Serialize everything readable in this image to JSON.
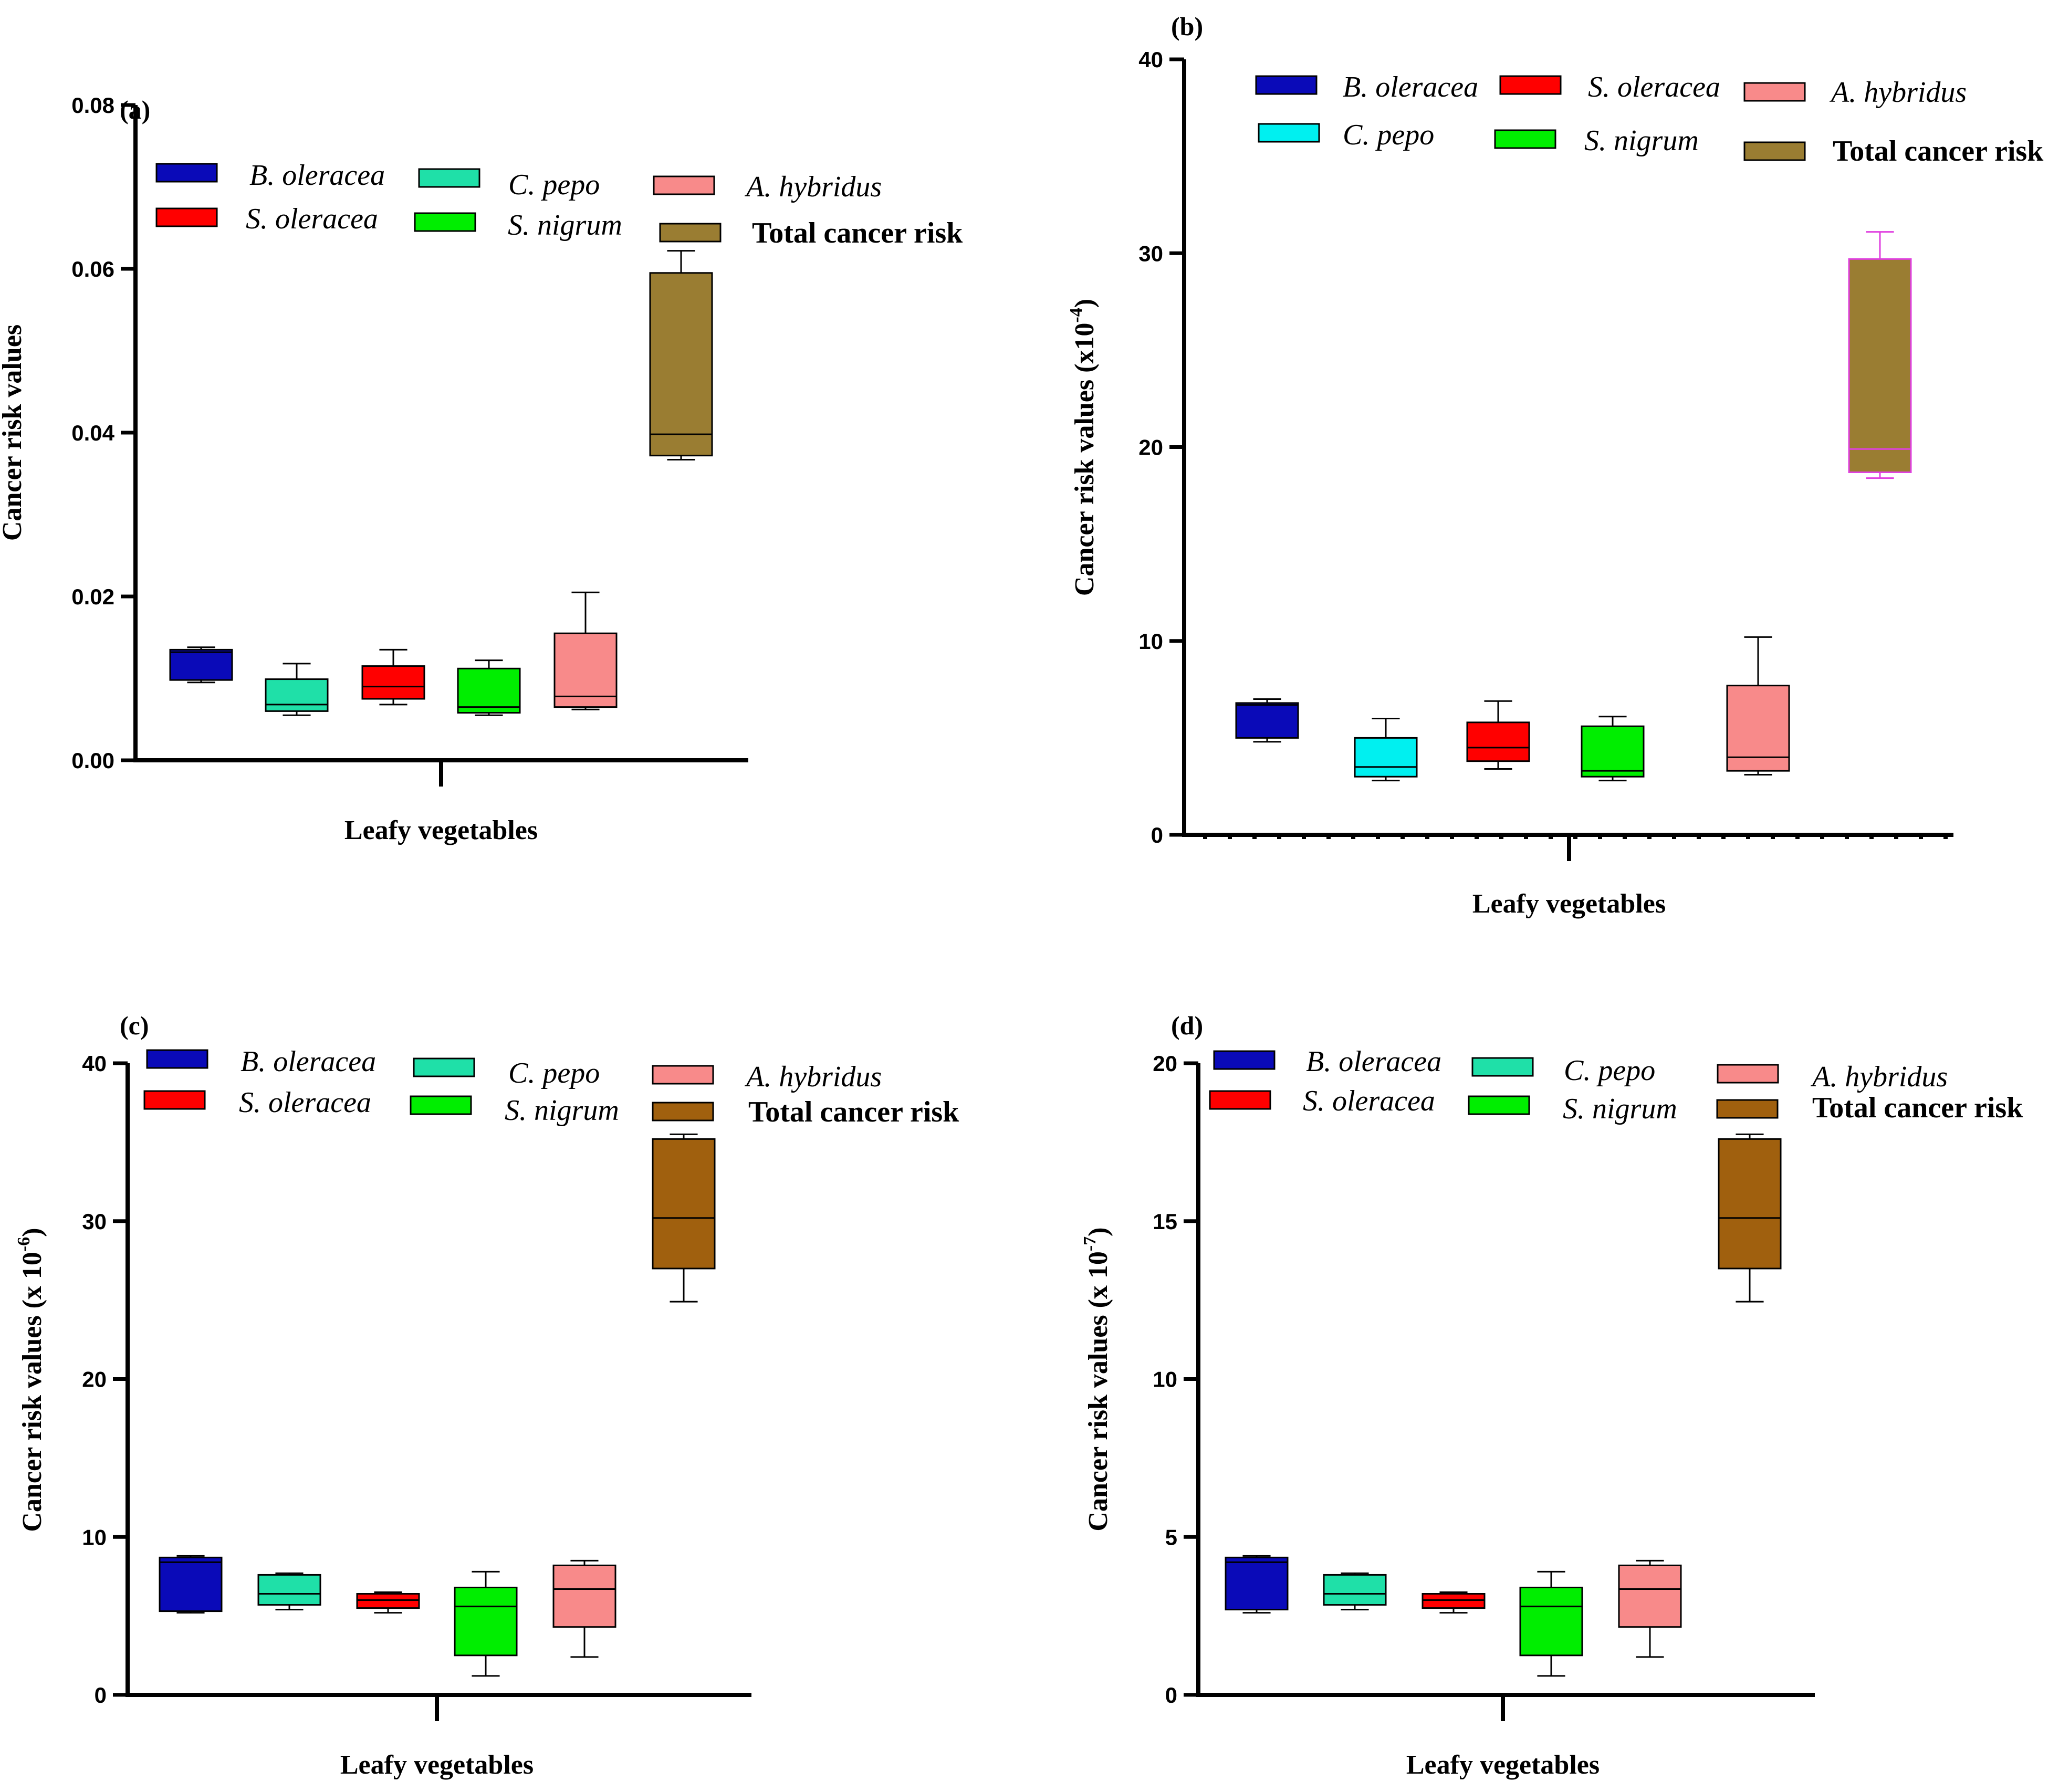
{
  "chart_data": [
    {
      "panel": "(a)",
      "type": "box",
      "title": "",
      "xlabel": "Leafy vegetables",
      "ylabel": "Cancer risk values",
      "ylabel_sup": "",
      "ylabel_suffix": "",
      "ylim": [
        0,
        0.08
      ],
      "yticks": [
        0,
        0.02,
        0.04,
        0.06,
        0.08
      ],
      "ytick_labels": [
        "0.00",
        "0.02",
        "0.04",
        "0.06",
        "0.08"
      ],
      "series": [
        {
          "name": "B. oleracea",
          "color": "#0a0ab8",
          "stroke": "#000000",
          "min": 0.0095,
          "q1": 0.0098,
          "median": 0.0132,
          "q3": 0.0135,
          "max": 0.0138
        },
        {
          "name": "C. pepo",
          "color": "#1fe0a8",
          "stroke": "#000000",
          "min": 0.0055,
          "q1": 0.006,
          "median": 0.0068,
          "q3": 0.0099,
          "max": 0.0118
        },
        {
          "name": "S. oleracea",
          "color": "#ff0000",
          "stroke": "#000000",
          "min": 0.0068,
          "q1": 0.0075,
          "median": 0.009,
          "q3": 0.0115,
          "max": 0.0135
        },
        {
          "name": "S. nigrum",
          "color": "#00ee00",
          "stroke": "#000000",
          "min": 0.0055,
          "q1": 0.0058,
          "median": 0.0065,
          "q3": 0.0112,
          "max": 0.0122
        },
        {
          "name": "A. hybridus",
          "color": "#f88a8a",
          "stroke": "#000000",
          "min": 0.0062,
          "q1": 0.0065,
          "median": 0.0078,
          "q3": 0.0155,
          "max": 0.0205
        },
        {
          "name": "Total cancer risk",
          "color": "#9a7d32",
          "stroke": "#000000",
          "min": 0.0367,
          "q1": 0.0372,
          "median": 0.0398,
          "q3": 0.0595,
          "max": 0.0622
        }
      ]
    },
    {
      "panel": "(b)",
      "type": "box",
      "title": "",
      "xlabel": "Leafy vegetables",
      "ylabel": "Cancer risk values (x10",
      "ylabel_sup": "-4",
      "ylabel_suffix": ")",
      "ylim": [
        0,
        40
      ],
      "yticks": [
        0,
        10,
        20,
        30,
        40
      ],
      "ytick_labels": [
        "0",
        "10",
        "20",
        "30",
        "40"
      ],
      "series": [
        {
          "name": "B. oleracea",
          "color": "#0a0ab8",
          "stroke": "#000000",
          "min": 4.8,
          "q1": 5.0,
          "median": 6.7,
          "q3": 6.8,
          "max": 7.0
        },
        {
          "name": "C. pepo",
          "color": "#00f0f0",
          "stroke": "#000000",
          "min": 2.8,
          "q1": 3.0,
          "median": 3.5,
          "q3": 5.0,
          "max": 6.0
        },
        {
          "name": "S. oleracea",
          "color": "#ff0000",
          "stroke": "#000000",
          "min": 3.4,
          "q1": 3.8,
          "median": 4.5,
          "q3": 5.8,
          "max": 6.9
        },
        {
          "name": "S. nigrum",
          "color": "#00ee00",
          "stroke": "#000000",
          "min": 2.8,
          "q1": 3.0,
          "median": 3.3,
          "q3": 5.6,
          "max": 6.1
        },
        {
          "name": "A. hybridus",
          "color": "#f88a8a",
          "stroke": "#000000",
          "min": 3.1,
          "q1": 3.3,
          "median": 4.0,
          "q3": 7.7,
          "max": 10.2
        },
        {
          "name": "Total cancer risk",
          "color": "#9a7d32",
          "stroke": "#e040e0",
          "min": 18.4,
          "q1": 18.7,
          "median": 19.9,
          "q3": 29.7,
          "max": 31.1
        }
      ]
    },
    {
      "panel": "(c)",
      "type": "box",
      "title": "",
      "xlabel": "Leafy vegetables",
      "ylabel": "Cancer risk values (x 10",
      "ylabel_sup": "-6",
      "ylabel_suffix": ")",
      "ylim": [
        0,
        40
      ],
      "yticks": [
        0,
        10,
        20,
        30,
        40
      ],
      "ytick_labels": [
        "0",
        "10",
        "20",
        "30",
        "40"
      ],
      "series": [
        {
          "name": "B. oleracea",
          "color": "#0a0ab8",
          "stroke": "#000000",
          "min": 5.2,
          "q1": 5.3,
          "median": 8.4,
          "q3": 8.7,
          "max": 8.8
        },
        {
          "name": "C. pepo",
          "color": "#1fe0a8",
          "stroke": "#000000",
          "min": 5.4,
          "q1": 5.7,
          "median": 6.4,
          "q3": 7.6,
          "max": 7.7
        },
        {
          "name": "S. oleracea",
          "color": "#ff0000",
          "stroke": "#000000",
          "min": 5.2,
          "q1": 5.5,
          "median": 6.0,
          "q3": 6.4,
          "max": 6.5
        },
        {
          "name": "S. nigrum",
          "color": "#00ee00",
          "stroke": "#000000",
          "min": 1.2,
          "q1": 2.5,
          "median": 5.6,
          "q3": 6.8,
          "max": 7.8
        },
        {
          "name": "A. hybridus",
          "color": "#f88a8a",
          "stroke": "#000000",
          "min": 2.4,
          "q1": 4.3,
          "median": 6.7,
          "q3": 8.2,
          "max": 8.5
        },
        {
          "name": "Total cancer risk",
          "color": "#a0600e",
          "stroke": "#000000",
          "min": 24.9,
          "q1": 27.0,
          "median": 30.2,
          "q3": 35.2,
          "max": 35.5
        }
      ]
    },
    {
      "panel": "(d)",
      "type": "box",
      "title": "",
      "xlabel": "Leafy vegetables",
      "ylabel": "Cancer risk values (x 10",
      "ylabel_sup": "-7",
      "ylabel_suffix": ")",
      "ylim": [
        0,
        20
      ],
      "yticks": [
        0,
        5,
        10,
        15,
        20
      ],
      "ytick_labels": [
        "0",
        "5",
        "10",
        "15",
        "20"
      ],
      "series": [
        {
          "name": "B. oleracea",
          "color": "#0a0ab8",
          "stroke": "#000000",
          "min": 2.6,
          "q1": 2.7,
          "median": 4.2,
          "q3": 4.35,
          "max": 4.4
        },
        {
          "name": "C. pepo",
          "color": "#1fe0a8",
          "stroke": "#000000",
          "min": 2.7,
          "q1": 2.85,
          "median": 3.2,
          "q3": 3.8,
          "max": 3.85
        },
        {
          "name": "S. oleracea",
          "color": "#ff0000",
          "stroke": "#000000",
          "min": 2.6,
          "q1": 2.75,
          "median": 3.0,
          "q3": 3.2,
          "max": 3.25
        },
        {
          "name": "S. nigrum",
          "color": "#00ee00",
          "stroke": "#000000",
          "min": 0.6,
          "q1": 1.25,
          "median": 2.8,
          "q3": 3.4,
          "max": 3.9
        },
        {
          "name": "A. hybridus",
          "color": "#f88a8a",
          "stroke": "#000000",
          "min": 1.2,
          "q1": 2.15,
          "median": 3.35,
          "q3": 4.1,
          "max": 4.25
        },
        {
          "name": "Total cancer risk",
          "color": "#a0600e",
          "stroke": "#000000",
          "min": 12.45,
          "q1": 13.5,
          "median": 15.1,
          "q3": 17.6,
          "max": 17.75
        }
      ]
    }
  ]
}
